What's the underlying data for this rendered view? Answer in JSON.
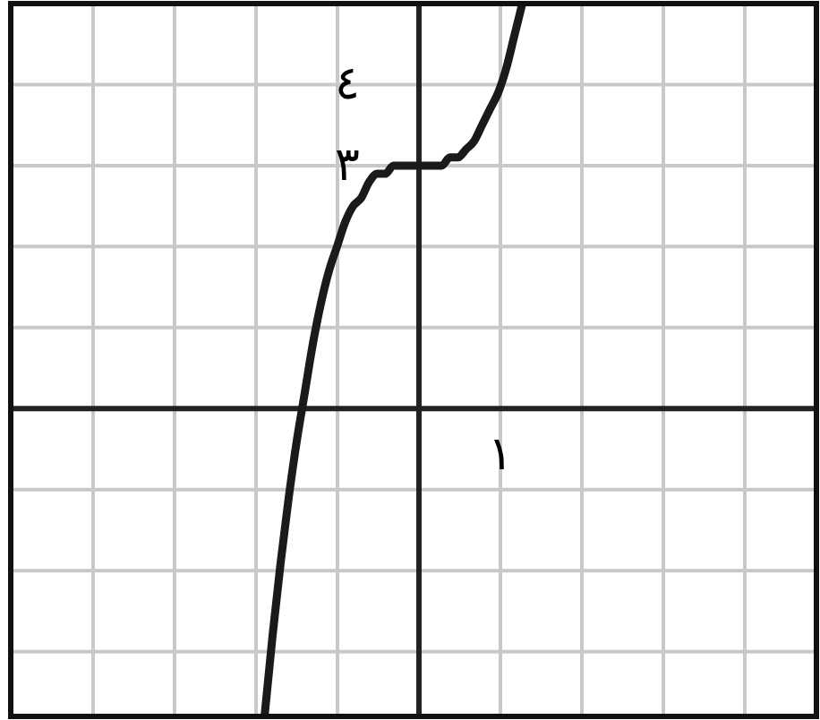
{
  "chart_data": {
    "type": "line",
    "ylim": [
      -3.8,
      5
    ],
    "categories": [
      null,
      null,
      null,
      null,
      null,
      null,
      null,
      null,
      null,
      null,
      null,
      null,
      null,
      null,
      null,
      null,
      null,
      null,
      null,
      null,
      null,
      null,
      null,
      null,
      null,
      null,
      null,
      null,
      null,
      null,
      null,
      null,
      null,
      null,
      null,
      null,
      null,
      null,
      null,
      null,
      null,
      null,
      null,
      null,
      null,
      null,
      null,
      null,
      null,
      null,
      null,
      null,
      null,
      null,
      null,
      null,
      null,
      null,
      null,
      null,
      null,
      null,
      null,
      null,
      null,
      null,
      null,
      null,
      null,
      null,
      null,
      null,
      null,
      null,
      null,
      null,
      null,
      null,
      null,
      null,
      null,
      null,
      null,
      null,
      null,
      null,
      null,
      null,
      null,
      null,
      null,
      null,
      null,
      null,
      null,
      null,
      null,
      null,
      null,
      null
    ],
    "yticks": [
      {
        "value": -3,
        "label": null
      },
      {
        "value": -2,
        "label": null
      },
      {
        "value": -1,
        "label": null
      },
      {
        "value": 1,
        "label": null
      },
      {
        "value": 2,
        "label": null
      },
      {
        "value": 3,
        "label": "٣"
      },
      {
        "value": 4,
        "label": "٤"
      }
    ],
    "annotations": [
      "١"
    ],
    "ref_lines": [
      {
        "axis": "y",
        "value": 0,
        "color": "#222222"
      }
    ],
    "grid": true,
    "marker": "none",
    "line_style": "solid",
    "series": [
      {
        "color": "#1a1a1a",
        "values": [
          null,
          null,
          null,
          null,
          null,
          null,
          null,
          null,
          null,
          null,
          null,
          null,
          null,
          null,
          null,
          null,
          null,
          null,
          null,
          null,
          null,
          null,
          null,
          null,
          null,
          null,
          null,
          null,
          null,
          null,
          null,
          -3.8,
          -2.8,
          -1.9,
          -1.1,
          -0.4,
          0.2,
          0.8,
          1.3,
          1.7,
          2.0,
          2.3,
          2.5,
          2.6,
          2.8,
          2.9,
          2.9,
          3.0,
          3.0,
          3.0,
          3.0,
          3.0,
          3.0,
          3.0,
          3.1,
          3.1,
          3.2,
          3.3,
          3.5,
          3.7,
          3.9,
          4.2,
          4.6,
          5.0,
          null,
          null,
          null,
          null,
          null,
          null,
          null,
          null,
          null,
          null,
          null,
          null,
          null,
          null,
          null,
          null,
          null,
          null,
          null,
          null,
          null,
          null,
          null,
          null,
          null,
          null,
          null,
          null,
          null,
          null,
          null,
          null,
          null,
          null,
          null,
          null
        ]
      }
    ]
  }
}
